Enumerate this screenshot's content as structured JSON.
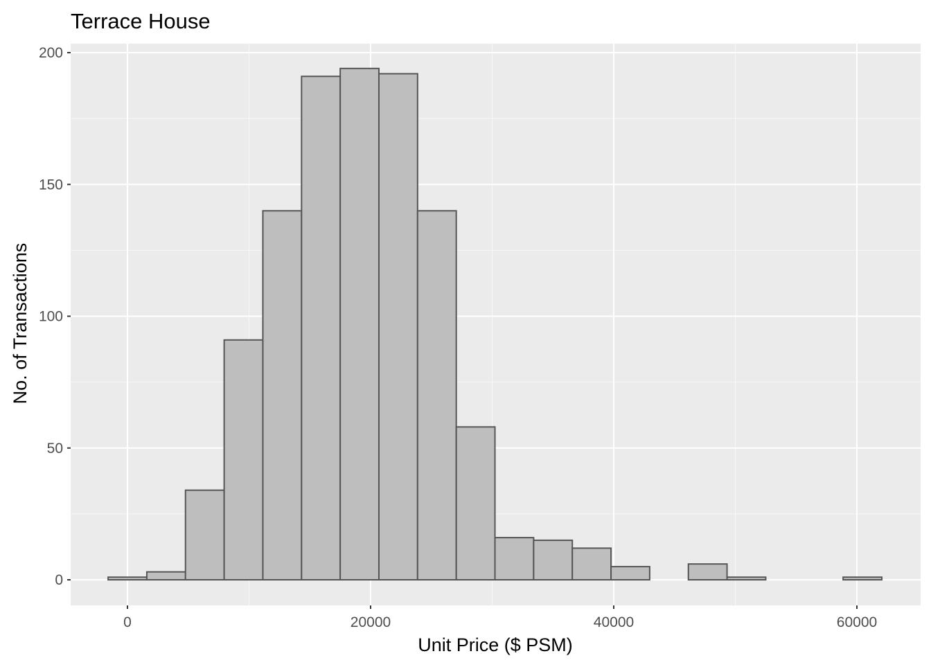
{
  "chart_data": {
    "type": "bar",
    "subtype": "histogram",
    "title": "Terrace House",
    "xlabel": "Unit Price ($ PSM)",
    "ylabel": "No. of Transactions",
    "xlim": [
      -4600,
      64300
    ],
    "ylim": [
      -9.7,
      203.5
    ],
    "x_ticks": [
      0,
      20000,
      40000,
      60000
    ],
    "x_tick_labels": [
      "0",
      "20000",
      "40000",
      "60000"
    ],
    "y_ticks": [
      0,
      50,
      100,
      150,
      200
    ],
    "y_tick_labels": [
      "0",
      "50",
      "100",
      "150",
      "200"
    ],
    "bin_width": 3182,
    "bins": [
      {
        "x_start": -1591,
        "x_end": 1591,
        "count": 1
      },
      {
        "x_start": 1591,
        "x_end": 4773,
        "count": 3
      },
      {
        "x_start": 4773,
        "x_end": 7955,
        "count": 34
      },
      {
        "x_start": 7955,
        "x_end": 11137,
        "count": 91
      },
      {
        "x_start": 11137,
        "x_end": 14319,
        "count": 140
      },
      {
        "x_start": 14319,
        "x_end": 17501,
        "count": 191
      },
      {
        "x_start": 17501,
        "x_end": 20683,
        "count": 194
      },
      {
        "x_start": 20683,
        "x_end": 23865,
        "count": 192
      },
      {
        "x_start": 23865,
        "x_end": 27047,
        "count": 140
      },
      {
        "x_start": 27047,
        "x_end": 30229,
        "count": 58
      },
      {
        "x_start": 30229,
        "x_end": 33411,
        "count": 16
      },
      {
        "x_start": 33411,
        "x_end": 36593,
        "count": 15
      },
      {
        "x_start": 36593,
        "x_end": 39775,
        "count": 12
      },
      {
        "x_start": 39775,
        "x_end": 42957,
        "count": 5
      },
      {
        "x_start": 42957,
        "x_end": 46139,
        "count": 0
      },
      {
        "x_start": 46139,
        "x_end": 49321,
        "count": 6
      },
      {
        "x_start": 49321,
        "x_end": 52503,
        "count": 1
      },
      {
        "x_start": 52503,
        "x_end": 55685,
        "count": 0
      },
      {
        "x_start": 55685,
        "x_end": 58867,
        "count": 0
      },
      {
        "x_start": 58867,
        "x_end": 62049,
        "count": 1
      }
    ],
    "grid": true,
    "panel_background": "#ebebeb",
    "bar_fill": "#bebebe",
    "bar_outline": "#555555",
    "legend": "none"
  }
}
